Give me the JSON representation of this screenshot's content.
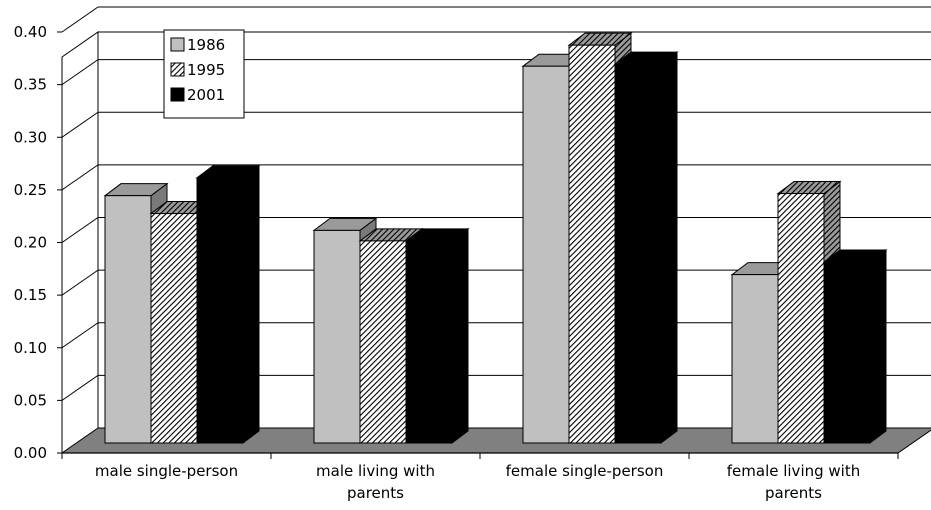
{
  "chart_data": {
    "type": "bar",
    "categories": [
      [
        "male single-person"
      ],
      [
        "male living with",
        "parents"
      ],
      [
        "female single-person"
      ],
      [
        "female living with",
        "parents"
      ]
    ],
    "series": [
      {
        "name": "1986",
        "values": [
          0.235,
          0.202,
          0.358,
          0.16
        ],
        "fill": "#c0c0c0",
        "pattern": "solid"
      },
      {
        "name": "1995",
        "values": [
          0.218,
          0.192,
          0.378,
          0.237
        ],
        "fill": "#ffffff",
        "pattern": "hatch"
      },
      {
        "name": "2001",
        "values": [
          0.252,
          0.192,
          0.36,
          0.172
        ],
        "fill": "#000000",
        "pattern": "solid"
      }
    ],
    "y_ticks": [
      "0.00",
      "0.05",
      "0.10",
      "0.15",
      "0.20",
      "0.25",
      "0.30",
      "0.35",
      "0.40"
    ],
    "ylim": [
      0,
      0.4
    ],
    "grid": true,
    "legend": "top-left",
    "colors": {
      "floor": "#808080",
      "side_shade": "#7a7a7a",
      "top_shade": "#9a9a9a"
    }
  }
}
